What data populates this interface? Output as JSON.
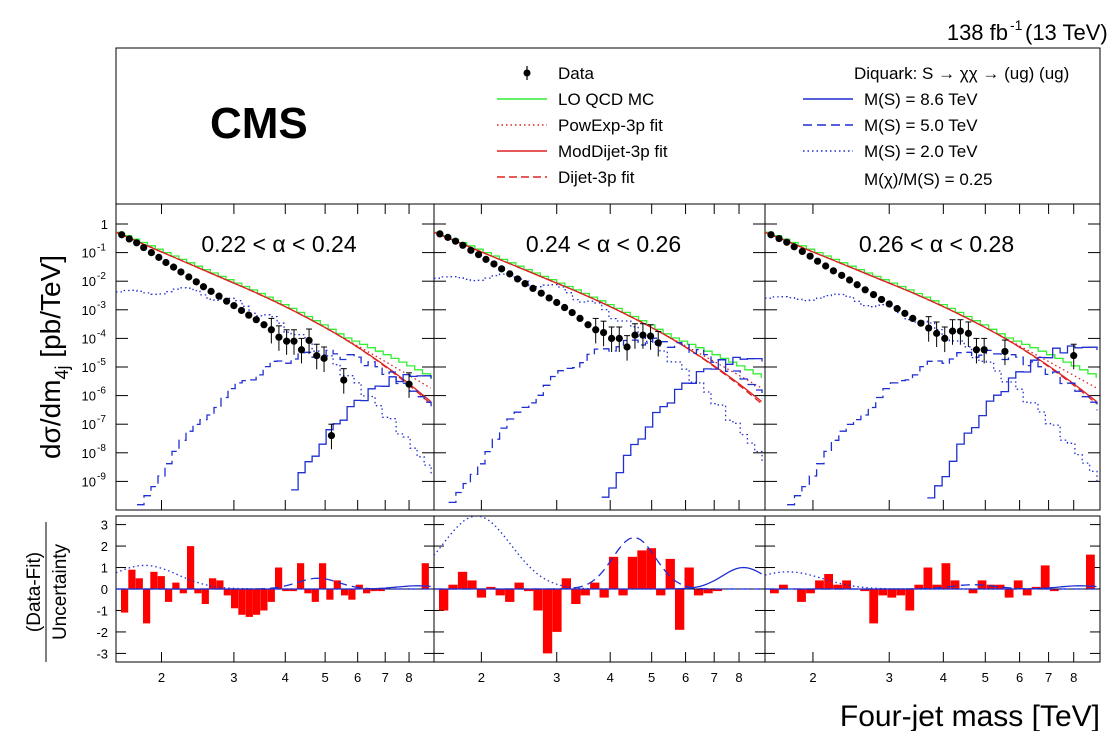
{
  "header": {
    "lumi": "138 fb",
    "lumi_sup": "-1",
    "energy": " (13 TeV)",
    "experiment": "CMS"
  },
  "legend": {
    "left": [
      {
        "label": "Data",
        "style": "data"
      },
      {
        "label": "LO QCD MC",
        "style": "qcd",
        "color": "#33ee33"
      },
      {
        "label": "PowExp-3p fit",
        "style": "powexp",
        "color": "#dd2222"
      },
      {
        "label": "ModDijet-3p fit",
        "style": "moddijet",
        "color": "#dd2222"
      },
      {
        "label": "Dijet-3p fit",
        "style": "dijet",
        "color": "#dd2222"
      }
    ],
    "right_title": "Diquark: S → χχ → (ug) (ug)",
    "right": [
      {
        "label": "M(S) = 8.6 TeV",
        "style": "solid",
        "color": "#1f2fd0"
      },
      {
        "label": "M(S) = 5.0 TeV",
        "style": "dashed",
        "color": "#1f2fd0"
      },
      {
        "label": "M(S) = 2.0 TeV",
        "style": "dotted",
        "color": "#1f2fd0"
      }
    ],
    "right_note": "M(χ)/M(S) = 0.25"
  },
  "axes": {
    "y_top_label": "dσ/dm",
    "y_top_sub": "4j",
    "y_top_unit": " [pb/TeV]",
    "y_bottom_num": "(Data-Fit)",
    "y_bottom_den": "Uncertainty",
    "x_label": "Four-jet mass [TeV]",
    "y_top_ticks": [
      "1",
      "10",
      "10",
      "10",
      "10",
      "10",
      "10",
      "10",
      "10",
      "10"
    ],
    "y_top_exps": [
      "",
      "-1",
      "-2",
      "-3",
      "-4",
      "-5",
      "-6",
      "-7",
      "-8",
      "-9"
    ],
    "y_bottom_ticks": [
      "3",
      "2",
      "1",
      "0",
      "-1",
      "-2",
      "-3"
    ],
    "x_ticks": [
      "2",
      "3",
      "4",
      "5",
      "6",
      "7",
      "8"
    ]
  },
  "chart_data": {
    "type": "line",
    "x_scale": "log",
    "y_scale": "log",
    "xlim": [
      1.55,
      9.2
    ],
    "ylim_top": [
      1e-10,
      5
    ],
    "ylim_bottom": [
      -3.4,
      3.4
    ],
    "panels": [
      {
        "label": "0.22 < α < 0.24",
        "data": {
          "x": [
            1.6,
            1.67,
            1.74,
            1.81,
            1.89,
            1.97,
            2.05,
            2.14,
            2.23,
            2.33,
            2.43,
            2.53,
            2.64,
            2.76,
            2.88,
            3.0,
            3.13,
            3.26,
            3.4,
            3.55,
            3.7,
            3.86,
            4.03,
            4.2,
            4.38,
            4.57,
            4.77,
            4.97,
            5.18,
            5.55,
            8.0
          ],
          "y": [
            0.42,
            0.3,
            0.22,
            0.15,
            0.1,
            0.068,
            0.045,
            0.031,
            0.021,
            0.014,
            0.0095,
            0.0064,
            0.0044,
            0.003,
            0.002,
            0.0014,
            0.00095,
            0.00065,
            0.00045,
            0.0003,
            0.0002,
            0.00011,
            8e-05,
            8e-05,
            4e-05,
            8.5e-05,
            2.5e-05,
            2e-05,
            4e-08,
            3.5e-06,
            2.5e-06
          ]
        },
        "data_real": {
          "x": [
            1.6,
            1.67,
            1.74,
            1.81,
            1.89,
            1.97,
            2.05,
            2.14,
            2.23,
            2.33,
            2.43,
            2.53,
            2.64,
            2.76,
            2.88,
            3.0,
            3.13,
            3.26,
            3.4,
            3.55,
            3.7,
            3.86,
            4.03,
            4.2,
            4.38,
            4.57,
            4.77,
            4.97,
            5.3,
            5.55,
            8.0
          ],
          "y": [
            0.42,
            0.3,
            0.22,
            0.15,
            0.1,
            0.068,
            0.045,
            0.031,
            0.021,
            0.014,
            0.0095,
            0.0064,
            0.0044,
            0.003,
            0.002,
            0.0014,
            0.00095,
            0.00065,
            0.00045,
            0.0003,
            0.0002,
            0.00011,
            8e-05,
            7e-05,
            2.5e-05,
            4e-05,
            2.5e-05,
            2e-05,
            4e-06,
            3.5e-06,
            2.5e-06
          ]
        },
        "pulls": [
          -1.1,
          0.9,
          0.5,
          -1.6,
          0.8,
          0.6,
          -0.6,
          0.3,
          -0.2,
          2.0,
          -0.2,
          -0.7,
          0.5,
          0.4,
          -0.3,
          -0.9,
          -1.2,
          -1.3,
          -1.2,
          -1.0,
          -0.6,
          1.0,
          -0.1,
          -0.1,
          1.2,
          -0.2,
          -0.6,
          1.2,
          -0.5,
          0.4,
          -0.3,
          -0.5,
          0.2,
          -0.2,
          -0.1,
          -0.1,
          0.0,
          0.0,
          0.0,
          0.0,
          0.0,
          1.2
        ]
      },
      {
        "label": "0.24 < α < 0.26",
        "data": {
          "x": [
            1.6,
            1.67,
            1.74,
            1.81,
            1.89,
            1.97,
            2.05,
            2.14,
            2.23,
            2.33,
            2.43,
            2.53,
            2.64,
            2.76,
            2.88,
            3.0,
            3.13,
            3.26,
            3.4,
            3.55,
            3.7,
            3.86,
            4.03,
            4.2,
            4.38,
            4.57,
            4.77,
            4.97,
            5.18
          ],
          "y": [
            0.45,
            0.34,
            0.25,
            0.18,
            0.12,
            0.085,
            0.058,
            0.04,
            0.027,
            0.018,
            0.012,
            0.0082,
            0.0056,
            0.0038,
            0.0026,
            0.0018,
            0.0012,
            0.0008,
            0.0005,
            0.0003,
            0.0002,
            0.00016,
            0.0001,
            0.0001,
            5e-05,
            0.00013,
            0.00013,
            0.00012,
            7e-05
          ]
        },
        "pulls": [
          -1.0,
          0.2,
          0.8,
          0.4,
          -0.4,
          0.1,
          -0.3,
          -0.6,
          0.3,
          -0.1,
          -1.0,
          -3.0,
          -2.0,
          0.5,
          -0.7,
          -0.3,
          0.3,
          -0.4,
          1.5,
          -0.3,
          1.5,
          1.8,
          1.9,
          -0.3,
          1.4,
          -1.9,
          1.0,
          -0.3,
          -0.2,
          -0.1,
          0.0,
          0.0,
          0.0,
          0.0
        ]
      },
      {
        "label": "0.26 < α < 0.28",
        "data": {
          "x": [
            1.6,
            1.67,
            1.74,
            1.81,
            1.89,
            1.97,
            2.05,
            2.14,
            2.23,
            2.33,
            2.43,
            2.53,
            2.64,
            2.76,
            2.88,
            3.0,
            3.13,
            3.26,
            3.4,
            3.55,
            3.7,
            3.86,
            4.03,
            4.2,
            4.38,
            4.57,
            4.77,
            4.97,
            5.55,
            8.0
          ],
          "y": [
            0.42,
            0.31,
            0.23,
            0.16,
            0.11,
            0.075,
            0.05,
            0.034,
            0.023,
            0.016,
            0.011,
            0.0075,
            0.005,
            0.0034,
            0.0023,
            0.0016,
            0.0011,
            0.00075,
            0.0005,
            0.00034,
            0.00023,
            0.00015,
            0.0001,
            0.00018,
            0.00018,
            0.00015,
            4e-05,
            4e-05,
            3.5e-05,
            2.5e-05
          ]
        },
        "pulls": [
          -0.2,
          0.2,
          0.0,
          -0.6,
          -0.2,
          0.4,
          0.7,
          0.2,
          0.4,
          0.0,
          -0.1,
          -1.6,
          -0.3,
          -0.4,
          -0.3,
          -1.0,
          0.2,
          1.0,
          0.2,
          1.2,
          0.4,
          0.0,
          -0.2,
          0.4,
          0.2,
          0.2,
          -0.4,
          0.4,
          -0.3,
          0.1,
          1.1,
          -0.1,
          0.0,
          0.0,
          0.0,
          1.6
        ]
      }
    ]
  }
}
